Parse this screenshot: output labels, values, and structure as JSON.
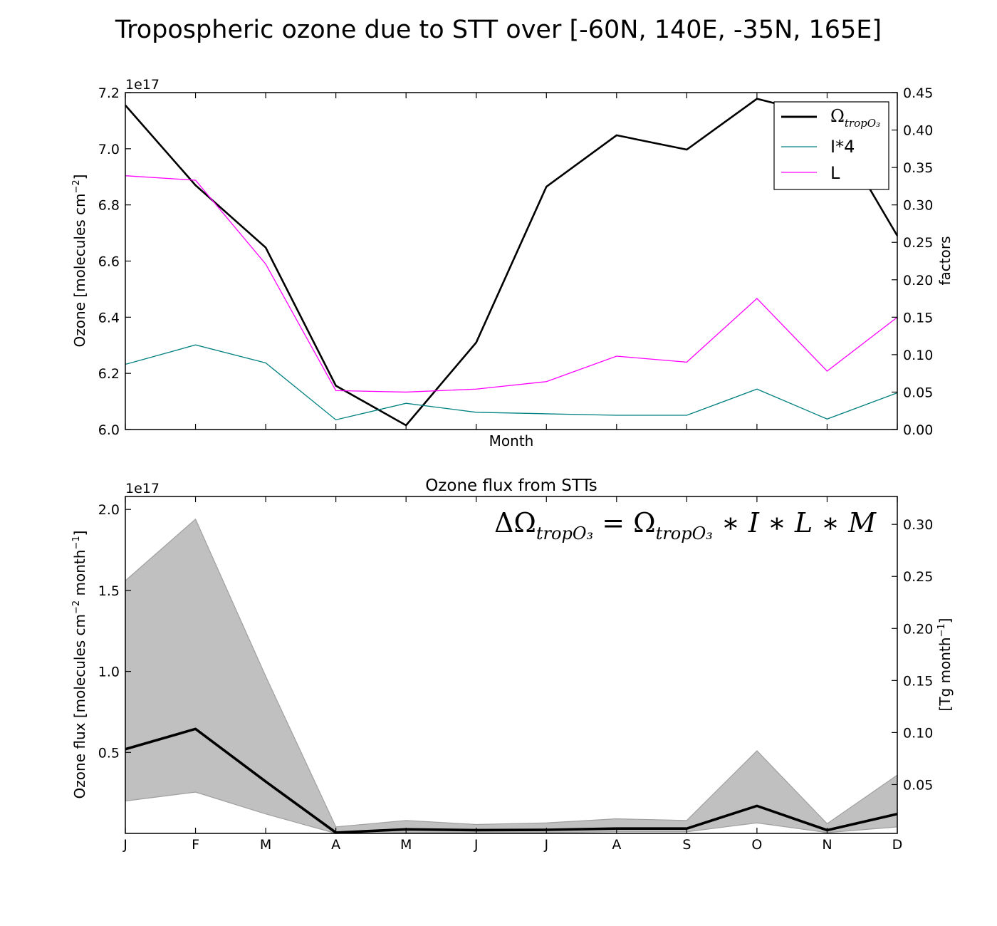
{
  "figure_title": "Tropospheric ozone due to STT over [-60N, 140E, -35N, 165E]",
  "chart_data": [
    {
      "type": "line",
      "title": "",
      "xlabel": "Month",
      "ylabel": "Ozone [molecules cm$^{-2}$]",
      "ylabel_parts": {
        "base": "Ozone [molecules cm",
        "sup": "−2",
        "end": "]"
      },
      "y_offset_label": "1e17",
      "y2label": "factors",
      "x": [
        1,
        2,
        3,
        4,
        5,
        6,
        7,
        8,
        9,
        10,
        11,
        12
      ],
      "xlim": [
        1,
        12
      ],
      "ylim": [
        6.0,
        7.2
      ],
      "yticks": [
        "6.0",
        "6.2",
        "6.4",
        "6.6",
        "6.8",
        "7.0",
        "7.2"
      ],
      "y2lim": [
        0.0,
        0.45
      ],
      "y2ticks": [
        "0.00",
        "0.05",
        "0.10",
        "0.15",
        "0.20",
        "0.25",
        "0.30",
        "0.35",
        "0.40",
        "0.45"
      ],
      "grid": false,
      "legend": {
        "position": "top-right"
      },
      "series": [
        {
          "name": "Ω",
          "name_sub": "tropO₃",
          "axis": "left",
          "color": "#000000",
          "values": [
            7.155,
            6.87,
            6.648,
            6.156,
            6.015,
            6.31,
            6.865,
            7.048,
            6.997,
            7.178,
            7.115,
            6.69
          ]
        },
        {
          "name": "I*4",
          "axis": "right",
          "color": "#008080",
          "values": [
            0.087,
            0.113,
            0.089,
            0.013,
            0.035,
            0.023,
            0.021,
            0.019,
            0.019,
            0.054,
            0.014,
            0.049
          ]
        },
        {
          "name": "L",
          "axis": "right",
          "color": "#ff00ff",
          "values": [
            0.339,
            0.333,
            0.221,
            0.052,
            0.05,
            0.054,
            0.064,
            0.098,
            0.09,
            0.175,
            0.078,
            0.15
          ]
        }
      ]
    },
    {
      "type": "area",
      "title": "Ozone flux from STTs",
      "xlabel": "",
      "ylabel": "Ozone flux [molecules cm$^{-2}$ month$^{-1}$]",
      "ylabel_parts": {
        "base": "Ozone flux [molecules cm",
        "sup": "−2",
        "mid": " month",
        "sup2": "−1",
        "end": "]"
      },
      "y_offset_label": "1e17",
      "y2label": "[Tg month$^{-1}$]",
      "y2label_parts": {
        "base": "[Tg month",
        "sup": "−1",
        "end": "]"
      },
      "annotation": "ΔΩ_tropO3 = Ω_tropO3 * I * L * M",
      "annotation_parts": {
        "delta": "ΔΩ",
        "sub": "tropO₃",
        "eq": " = Ω",
        "tail": " ∗ I ∗ L ∗ M"
      },
      "categories": [
        "J",
        "F",
        "M",
        "A",
        "M",
        "J",
        "J",
        "A",
        "S",
        "O",
        "N",
        "D"
      ],
      "x": [
        1,
        2,
        3,
        4,
        5,
        6,
        7,
        8,
        9,
        10,
        11,
        12
      ],
      "xlim": [
        1,
        12
      ],
      "ylim": [
        0.0,
        2.08
      ],
      "yticks": [
        "0.5",
        "1.0",
        "1.5",
        "2.0"
      ],
      "ytick_values": [
        0.5,
        1.0,
        1.5,
        2.0
      ],
      "y2lim": [
        0.0031,
        0.3268
      ],
      "y2ticks": [
        "0.05",
        "0.10",
        "0.15",
        "0.20",
        "0.25",
        "0.30"
      ],
      "y2tick_values": [
        0.05,
        0.1,
        0.15,
        0.2,
        0.25,
        0.3
      ],
      "grid": false,
      "series": [
        {
          "name": "",
          "color": "#000000",
          "values": [
            0.52,
            0.645,
            0.32,
            0.005,
            0.025,
            0.02,
            0.022,
            0.03,
            0.03,
            0.17,
            0.02,
            0.12
          ]
        }
      ],
      "band": {
        "color": "#c0c0c0",
        "edge_color": "#a0a0a0",
        "upper": [
          1.56,
          1.94,
          0.97,
          0.04,
          0.08,
          0.055,
          0.065,
          0.09,
          0.08,
          0.51,
          0.06,
          0.36
        ],
        "lower": [
          0.2,
          0.255,
          0.12,
          0.0,
          0.005,
          0.005,
          0.005,
          0.01,
          0.01,
          0.065,
          0.005,
          0.04
        ]
      }
    }
  ]
}
